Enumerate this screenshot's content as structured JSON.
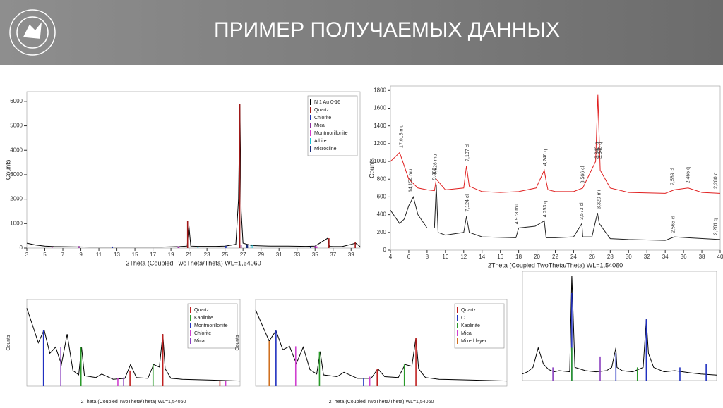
{
  "header": {
    "title": "ПРИМЕР ПОЛУЧАЕМЫХ ДАННЫХ"
  },
  "chart_data": [
    {
      "type": "line",
      "x_label": "2Theta (Coupled TwoTheta/Theta) WL=1,54060",
      "y_label": "Counts",
      "xlim": [
        3,
        40
      ],
      "xticks": [
        3,
        5,
        7,
        9,
        11,
        13,
        15,
        17,
        19,
        21,
        23,
        25,
        27,
        29,
        31,
        33,
        35,
        37,
        39
      ],
      "ylim": [
        0,
        6400
      ],
      "yticks": [
        0,
        1000,
        2000,
        3000,
        4000,
        5000,
        6000
      ],
      "legend": "upper right",
      "series": [
        {
          "name": "N 1 Au 0-16",
          "color": "#000000",
          "style": "line",
          "x": [
            3,
            4,
            5,
            6,
            8,
            10,
            12,
            14,
            16,
            18,
            19,
            20,
            20.8,
            21,
            21.2,
            22,
            24,
            25,
            26.2,
            26.5,
            26.65,
            26.8,
            27,
            27.5,
            28,
            30,
            32,
            34,
            35,
            36.4,
            36.6,
            37,
            38,
            39,
            39.5,
            40
          ],
          "values": [
            200,
            120,
            80,
            60,
            50,
            40,
            40,
            40,
            40,
            40,
            50,
            60,
            80,
            900,
            80,
            70,
            70,
            80,
            150,
            2000,
            5900,
            1500,
            200,
            150,
            100,
            80,
            80,
            70,
            80,
            400,
            70,
            60,
            60,
            150,
            200,
            60
          ]
        },
        {
          "name": "Quartz",
          "color": "#a01818",
          "style": "sticks",
          "x": [
            20.85,
            26.64,
            36.54,
            39.46
          ],
          "values": [
            1100,
            5900,
            400,
            250
          ]
        },
        {
          "name": "Chlorite",
          "color": "#1a2fb0",
          "style": "sticks",
          "x": [
            12.5,
            25.1,
            34.5
          ],
          "values": [
            60,
            90,
            50
          ]
        },
        {
          "name": "Mica",
          "color": "#8a2b9a",
          "style": "sticks",
          "x": [
            8.8,
            19.8,
            26.8,
            35
          ],
          "values": [
            80,
            70,
            120,
            90
          ]
        },
        {
          "name": "Montmorillonite",
          "color": "#d23cc8",
          "style": "sticks",
          "x": [
            5.8,
            19.9,
            35.2
          ],
          "values": [
            50,
            60,
            70
          ]
        },
        {
          "name": "Albite",
          "color": "#19c2d6",
          "style": "sticks",
          "x": [
            22,
            27.9,
            28.1
          ],
          "values": [
            60,
            150,
            120
          ]
        },
        {
          "name": "Microcline",
          "color": "#1b2d7a",
          "style": "sticks",
          "x": [
            27.4,
            27.5
          ],
          "values": [
            150,
            130
          ]
        }
      ]
    },
    {
      "type": "line",
      "x_label": "2Theta (Coupled TwoTheta/Theta) WL=1,54060",
      "y_label": "Counts",
      "xlim": [
        4,
        40
      ],
      "xticks": [
        4,
        6,
        8,
        10,
        12,
        14,
        16,
        18,
        20,
        22,
        24,
        26,
        28,
        30,
        32,
        34,
        36,
        38,
        40
      ],
      "ylim": [
        0,
        1850
      ],
      "yticks": [
        0,
        200,
        400,
        600,
        800,
        1000,
        1200,
        1400,
        1600,
        1800
      ],
      "series": [
        {
          "color": "#e02020",
          "style": "line",
          "x": [
            4,
            4.5,
            5,
            5.5,
            6,
            7,
            8,
            8.8,
            9,
            10,
            12,
            12.3,
            12.6,
            14,
            16,
            18,
            19.9,
            20.8,
            21,
            21.2,
            22,
            24,
            25,
            26.4,
            26.65,
            26.9,
            28,
            30,
            34,
            35,
            36.5,
            38,
            40
          ],
          "values": [
            1000,
            1050,
            1100,
            950,
            800,
            700,
            680,
            670,
            800,
            680,
            700,
            950,
            720,
            660,
            650,
            660,
            700,
            900,
            780,
            680,
            660,
            660,
            700,
            1000,
            1750,
            900,
            700,
            650,
            640,
            680,
            700,
            650,
            640
          ]
        },
        {
          "color": "#222222",
          "style": "line",
          "x": [
            4,
            5,
            5.5,
            6,
            6.5,
            7,
            8,
            8.8,
            9,
            9.2,
            10,
            12,
            12.3,
            12.6,
            14,
            17.7,
            18,
            19.8,
            20.8,
            21,
            22,
            24,
            24.9,
            25,
            26,
            26.6,
            26.8,
            27.5,
            28,
            30,
            34,
            35,
            36.5,
            40
          ],
          "values": [
            450,
            300,
            350,
            500,
            600,
            400,
            250,
            250,
            740,
            200,
            170,
            200,
            380,
            200,
            150,
            140,
            250,
            270,
            330,
            140,
            140,
            150,
            300,
            150,
            150,
            420,
            300,
            200,
            130,
            120,
            110,
            150,
            140,
            120
          ]
        }
      ],
      "annotations": [
        {
          "text": "17,015 mu",
          "x": 5.2,
          "y": 1120
        },
        {
          "text": "9,928 mu",
          "x": 8.9,
          "y": 820
        },
        {
          "text": "7,137 cl",
          "x": 12.4,
          "y": 970
        },
        {
          "text": "4,246 q",
          "x": 20.9,
          "y": 920
        },
        {
          "text": "3,566 cl",
          "x": 25,
          "y": 720
        },
        {
          "text": "3,342 q",
          "x": 26.55,
          "y": 1000
        },
        {
          "text": "3,340 q",
          "x": 26.9,
          "y": 1000
        },
        {
          "text": "2,589 cl",
          "x": 34.8,
          "y": 700
        },
        {
          "text": "2,455 q",
          "x": 36.5,
          "y": 720
        },
        {
          "text": "2,280 q",
          "x": 39.5,
          "y": 660
        },
        {
          "text": "14,154 mu",
          "x": 6.2,
          "y": 620
        },
        {
          "text": "9,882",
          "x": 8.8,
          "y": 760
        },
        {
          "text": "7,124 cl",
          "x": 12.4,
          "y": 400
        },
        {
          "text": "4,978 mu",
          "x": 17.8,
          "y": 260
        },
        {
          "text": "4,253 q",
          "x": 20.9,
          "y": 340
        },
        {
          "text": "3,573 cl",
          "x": 24.9,
          "y": 310
        },
        {
          "text": "3,320 mi",
          "x": 26.8,
          "y": 430
        },
        {
          "text": "2,565 cl",
          "x": 34.9,
          "y": 160
        },
        {
          "text": "2,281 q",
          "x": 39.5,
          "y": 140
        }
      ]
    },
    {
      "type": "line",
      "x_label": "2Theta (Coupled TwoTheta/Theta) WL=1,54060",
      "y_label": "Counts",
      "xlim": [
        3,
        40
      ],
      "ylim": [
        0,
        1000
      ],
      "legend": "upper right",
      "series": [
        {
          "color": "#000000",
          "style": "line",
          "x": [
            3,
            4,
            5,
            6,
            7,
            8,
            9,
            10,
            11,
            12,
            12.5,
            13,
            15,
            16,
            18,
            20,
            21,
            22,
            24,
            25,
            26,
            26.6,
            27,
            28,
            30,
            35,
            40
          ],
          "values": [
            900,
            700,
            500,
            650,
            380,
            450,
            250,
            600,
            180,
            130,
            450,
            120,
            100,
            140,
            80,
            90,
            250,
            100,
            90,
            250,
            220,
            600,
            200,
            90,
            80,
            70,
            60
          ]
        },
        {
          "name": "Quartz",
          "color": "#c02020",
          "style": "sticks",
          "x": [
            20.9,
            26.6,
            36.5
          ],
          "values": [
            180,
            600,
            60
          ]
        },
        {
          "name": "Kaolinite",
          "color": "#2a9a2a",
          "style": "sticks",
          "x": [
            12.4,
            24.9
          ],
          "values": [
            450,
            250
          ]
        },
        {
          "name": "Montmorillonite",
          "color": "#2030c0",
          "style": "sticks",
          "x": [
            5.9
          ],
          "values": [
            650
          ]
        },
        {
          "name": "Chlorite",
          "color": "#d040d0",
          "style": "sticks",
          "x": [
            18.8,
            37.5
          ],
          "values": [
            90,
            60
          ]
        },
        {
          "name": "Mica",
          "color": "#8a40c0",
          "style": "sticks",
          "x": [
            8.9,
            19.8
          ],
          "values": [
            450,
            100
          ]
        }
      ]
    },
    {
      "type": "line",
      "x_label": "2Theta (Coupled TwoTheta/Theta) WL=1,54060",
      "y_label": "Counts",
      "xlim": [
        3,
        40
      ],
      "ylim": [
        0,
        1000
      ],
      "legend": "upper right",
      "series": [
        {
          "color": "#000000",
          "style": "line",
          "x": [
            3,
            4,
            5,
            6,
            7,
            8,
            9,
            10,
            11,
            12,
            12.5,
            13,
            15,
            16,
            18,
            20,
            21,
            22,
            24,
            25,
            26,
            26.6,
            27,
            28,
            30,
            35,
            40
          ],
          "values": [
            880,
            700,
            520,
            640,
            420,
            460,
            260,
            450,
            190,
            140,
            400,
            130,
            110,
            160,
            90,
            90,
            200,
            110,
            100,
            250,
            230,
            560,
            200,
            100,
            80,
            70,
            60
          ]
        },
        {
          "name": "Quartz",
          "color": "#c02020",
          "style": "sticks",
          "x": [
            20.9,
            26.6
          ],
          "values": [
            200,
            560
          ]
        },
        {
          "name": "C",
          "color": "#2030c0",
          "style": "sticks",
          "x": [
            6,
            18.9
          ],
          "values": [
            640,
            90
          ]
        },
        {
          "name": "Kaolinite",
          "color": "#2a9a2a",
          "style": "sticks",
          "x": [
            12.4,
            24.9
          ],
          "values": [
            400,
            250
          ]
        },
        {
          "name": "Mica",
          "color": "#d040d0",
          "style": "sticks",
          "x": [
            8.9,
            19.8
          ],
          "values": [
            460,
            110
          ]
        },
        {
          "name": "Mixed layer",
          "color": "#d07020",
          "style": "sticks",
          "x": [
            5
          ],
          "values": [
            520
          ]
        }
      ]
    },
    {
      "type": "line",
      "xlim": [
        3,
        40
      ],
      "ylim": [
        0,
        1000
      ],
      "series": [
        {
          "color": "#000000",
          "style": "line",
          "x": [
            3,
            4,
            5,
            6,
            7,
            8,
            9,
            10,
            12,
            12.4,
            13,
            15,
            17,
            19,
            20,
            20.8,
            21,
            22,
            24,
            25,
            26,
            26.6,
            27,
            28,
            30,
            32,
            35,
            37,
            40
          ],
          "values": [
            60,
            80,
            120,
            300,
            150,
            100,
            80,
            90,
            80,
            960,
            120,
            90,
            80,
            90,
            120,
            300,
            120,
            90,
            80,
            100,
            120,
            560,
            250,
            120,
            80,
            90,
            70,
            60,
            50
          ]
        },
        {
          "color": "#2030c0",
          "style": "sticks",
          "x": [
            12.4,
            20.8,
            26.6,
            33,
            38
          ],
          "values": [
            800,
            250,
            560,
            120,
            150
          ]
        },
        {
          "color": "#2a9a2a",
          "style": "sticks",
          "x": [
            12.4,
            24.9
          ],
          "values": [
            300,
            120
          ]
        },
        {
          "color": "#8a40c0",
          "style": "sticks",
          "x": [
            8.8,
            17.8
          ],
          "values": [
            120,
            220
          ]
        }
      ]
    }
  ]
}
